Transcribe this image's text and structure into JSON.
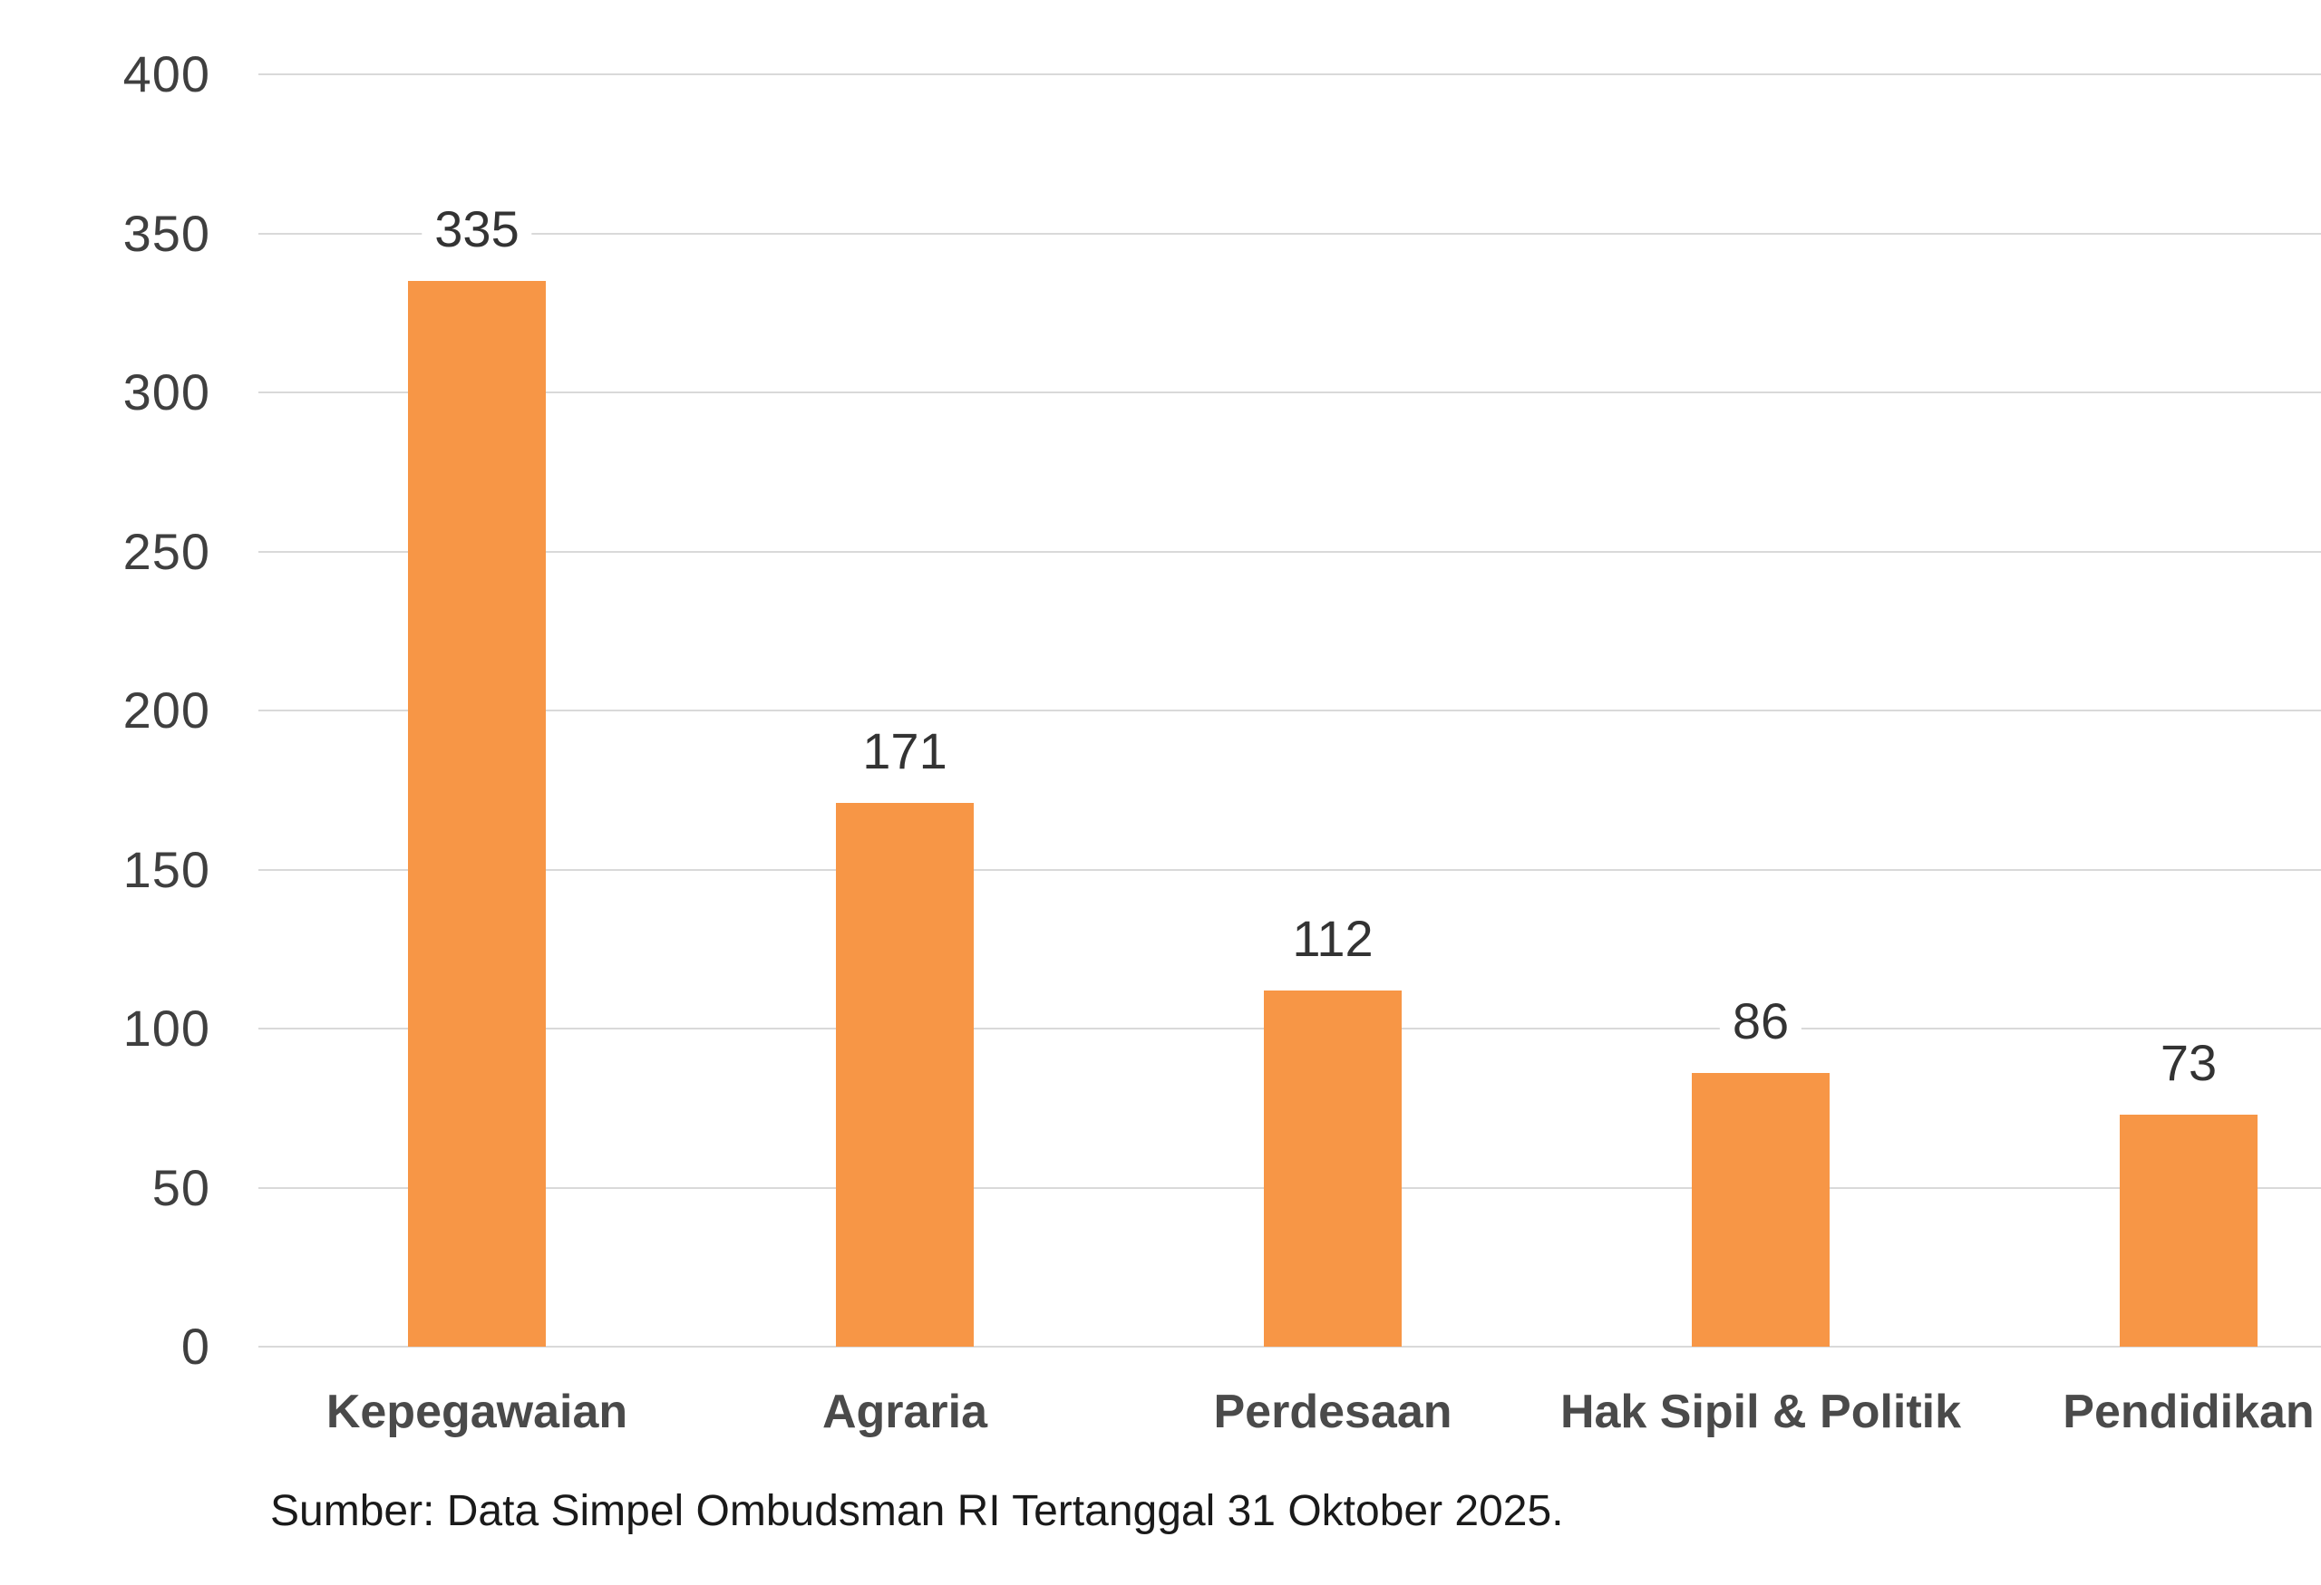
{
  "chart_data": {
    "type": "bar",
    "categories": [
      "Kepegawaian",
      "Agraria",
      "Perdesaan",
      "Hak Sipil & Politik",
      "Pendidikan"
    ],
    "values": [
      335,
      171,
      112,
      86,
      73
    ],
    "title": "",
    "xlabel": "",
    "ylabel": "",
    "ylim": [
      0,
      400
    ],
    "yticks": [
      0,
      50,
      100,
      150,
      200,
      250,
      300,
      350,
      400
    ],
    "grid": true,
    "legend": false,
    "data_labels": [
      335,
      171,
      112,
      86,
      73
    ]
  },
  "source_note": "Sumber: Data Simpel Ombudsman RI Tertanggal 31 Oktober 2025.",
  "colors": {
    "bar": "#F79646",
    "gridline": "#D9D9D9",
    "axis_tick_text": "#3F3F3F",
    "value_label_text": "#333333",
    "category_label_text": "#4A4A4A",
    "source_text": "#1A1A1A",
    "background": "#FFFFFF"
  }
}
